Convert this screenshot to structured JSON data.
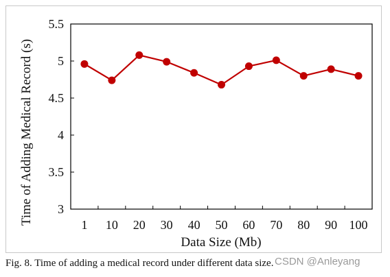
{
  "chart_data": {
    "type": "line",
    "categories": [
      "1",
      "10",
      "20",
      "30",
      "40",
      "50",
      "60",
      "70",
      "80",
      "90",
      "100"
    ],
    "series": [
      {
        "values": [
          4.96,
          4.74,
          5.08,
          4.99,
          4.84,
          4.68,
          4.93,
          5.01,
          4.8,
          4.89,
          4.8
        ],
        "color": "#c00000"
      }
    ],
    "xlabel": "Data Size (Mb)",
    "ylabel": "Time of Adding Medical Record (s)",
    "ylim": [
      3,
      5.5
    ],
    "yticks": [
      "3",
      "3.5",
      "4",
      "4.5",
      "5",
      "5.5"
    ],
    "grid": false,
    "legend": "none"
  },
  "caption": "Fig. 8.  Time of adding a medical record under different data size.",
  "watermark": "CSDN @Anleyang"
}
